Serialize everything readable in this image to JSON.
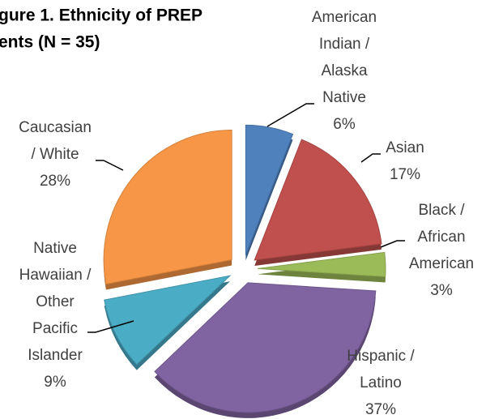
{
  "chart_data": {
    "type": "pie",
    "title": [
      "gure 1. Ethnicity of PREP",
      "ents (N = 35)"
    ],
    "categories": [
      [
        "American",
        "Indian /",
        "Alaska",
        "Native"
      ],
      [
        "Asian"
      ],
      [
        "Black /",
        "African",
        "American"
      ],
      [
        "Hispanic /",
        "Latino"
      ],
      [
        "Native",
        "Hawaiian /",
        "Other",
        "Pacific",
        "Islander"
      ],
      [
        "Caucasian",
        "/ White"
      ]
    ],
    "values": [
      6,
      17,
      3,
      37,
      9,
      28
    ],
    "value_labels": [
      "6%",
      "17%",
      "3%",
      "37%",
      "9%",
      "28%"
    ],
    "colors": [
      "#4f81bd",
      "#c0504d",
      "#9bbb59",
      "#8064a2",
      "#4bacc6",
      "#f79646"
    ]
  }
}
